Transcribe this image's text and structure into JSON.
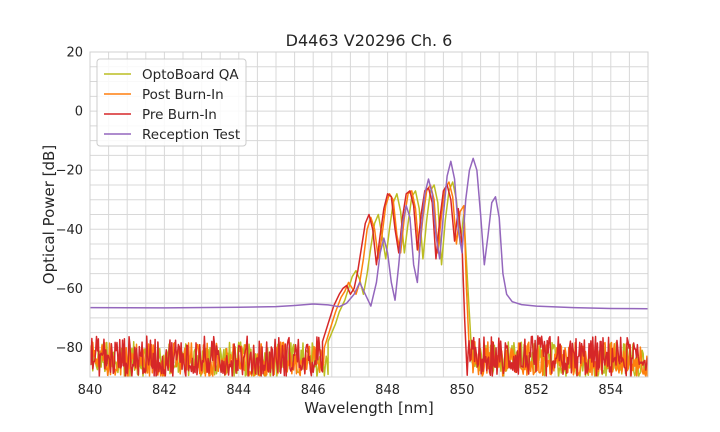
{
  "chart_data": {
    "type": "line",
    "title": "D4463 V20296 Ch. 6",
    "xlabel": "Wavelength [nm]",
    "ylabel": "Optical Power [dB]",
    "xlim": [
      840,
      855
    ],
    "ylim": [
      -90,
      20
    ],
    "xticks": [
      840,
      842,
      844,
      846,
      848,
      850,
      852,
      854
    ],
    "yticks": [
      20,
      0,
      -20,
      -40,
      -60,
      -80
    ],
    "ytick_labels": [
      "20",
      "0",
      "−20",
      "−40",
      "−60",
      "−80"
    ],
    "grid": true,
    "legend_position": "top-left",
    "series": [
      {
        "name": "OptoBoard QA",
        "color": "#bcbd22",
        "noise_floor": {
          "x_ranges": [
            [
              840,
              846.7
            ],
            [
              850.2,
              855
            ]
          ],
          "min": -90,
          "max": -78
        },
        "points": [
          [
            846.4,
            -78
          ],
          [
            846.6,
            -72
          ],
          [
            846.7,
            -68
          ],
          [
            846.85,
            -64
          ],
          [
            846.95,
            -60
          ],
          [
            847.05,
            -56
          ],
          [
            847.15,
            -54
          ],
          [
            847.25,
            -57
          ],
          [
            847.35,
            -62
          ],
          [
            847.45,
            -55
          ],
          [
            847.55,
            -46
          ],
          [
            847.65,
            -38
          ],
          [
            847.75,
            -35
          ],
          [
            847.85,
            -42
          ],
          [
            847.95,
            -50
          ],
          [
            848.05,
            -40
          ],
          [
            848.15,
            -31
          ],
          [
            848.25,
            -28
          ],
          [
            848.35,
            -34
          ],
          [
            848.45,
            -48
          ],
          [
            848.55,
            -38
          ],
          [
            848.65,
            -29
          ],
          [
            848.75,
            -27
          ],
          [
            848.85,
            -33
          ],
          [
            848.95,
            -50
          ],
          [
            849.05,
            -37
          ],
          [
            849.15,
            -27
          ],
          [
            849.25,
            -25
          ],
          [
            849.35,
            -31
          ],
          [
            849.45,
            -52
          ],
          [
            849.55,
            -37
          ],
          [
            849.65,
            -27
          ],
          [
            849.75,
            -24
          ],
          [
            849.85,
            -30
          ],
          [
            849.95,
            -45
          ],
          [
            850.05,
            -35
          ],
          [
            850.15,
            -58
          ],
          [
            850.25,
            -80
          ]
        ]
      },
      {
        "name": "Post Burn-In",
        "color": "#ff7f0e",
        "noise_floor": {
          "x_ranges": [
            [
              840,
              846.6
            ],
            [
              850.1,
              855
            ]
          ],
          "min": -90,
          "max": -78
        },
        "points": [
          [
            846.3,
            -80
          ],
          [
            846.45,
            -74
          ],
          [
            846.6,
            -68
          ],
          [
            846.75,
            -63
          ],
          [
            846.85,
            -61
          ],
          [
            846.95,
            -58
          ],
          [
            847.05,
            -60
          ],
          [
            847.15,
            -62
          ],
          [
            847.25,
            -58
          ],
          [
            847.35,
            -50
          ],
          [
            847.45,
            -40
          ],
          [
            847.55,
            -36
          ],
          [
            847.65,
            -40
          ],
          [
            847.75,
            -50
          ],
          [
            847.85,
            -42
          ],
          [
            847.95,
            -32
          ],
          [
            848.05,
            -28
          ],
          [
            848.15,
            -30
          ],
          [
            848.25,
            -42
          ],
          [
            848.35,
            -48
          ],
          [
            848.45,
            -36
          ],
          [
            848.55,
            -28
          ],
          [
            848.65,
            -27
          ],
          [
            848.75,
            -33
          ],
          [
            848.85,
            -48
          ],
          [
            848.95,
            -36
          ],
          [
            849.05,
            -27
          ],
          [
            849.15,
            -25
          ],
          [
            849.25,
            -30
          ],
          [
            849.35,
            -48
          ],
          [
            849.45,
            -35
          ],
          [
            849.55,
            -26
          ],
          [
            849.65,
            -24
          ],
          [
            849.75,
            -29
          ],
          [
            849.85,
            -45
          ],
          [
            849.95,
            -34
          ],
          [
            850.05,
            -32
          ],
          [
            850.12,
            -60
          ],
          [
            850.2,
            -82
          ]
        ]
      },
      {
        "name": "Pre Burn-In",
        "color": "#d62728",
        "noise_floor": {
          "x_ranges": [
            [
              840,
              846.5
            ],
            [
              850.0,
              855
            ]
          ],
          "min": -90,
          "max": -76
        },
        "points": [
          [
            846.25,
            -78
          ],
          [
            846.4,
            -72
          ],
          [
            846.55,
            -66
          ],
          [
            846.7,
            -62
          ],
          [
            846.8,
            -60
          ],
          [
            846.9,
            -59
          ],
          [
            847.0,
            -62
          ],
          [
            847.1,
            -60
          ],
          [
            847.2,
            -54
          ],
          [
            847.3,
            -46
          ],
          [
            847.4,
            -38
          ],
          [
            847.5,
            -35
          ],
          [
            847.6,
            -40
          ],
          [
            847.7,
            -52
          ],
          [
            847.8,
            -42
          ],
          [
            847.9,
            -33
          ],
          [
            848.0,
            -28
          ],
          [
            848.1,
            -29
          ],
          [
            848.2,
            -40
          ],
          [
            848.3,
            -48
          ],
          [
            848.4,
            -36
          ],
          [
            848.5,
            -28
          ],
          [
            848.6,
            -27
          ],
          [
            848.7,
            -32
          ],
          [
            848.8,
            -47
          ],
          [
            848.9,
            -35
          ],
          [
            849.0,
            -27
          ],
          [
            849.1,
            -26
          ],
          [
            849.2,
            -31
          ],
          [
            849.3,
            -50
          ],
          [
            849.4,
            -37
          ],
          [
            849.5,
            -27
          ],
          [
            849.6,
            -25
          ],
          [
            849.7,
            -30
          ],
          [
            849.8,
            -44
          ],
          [
            849.9,
            -33
          ],
          [
            850.0,
            -45
          ],
          [
            850.07,
            -70
          ],
          [
            850.12,
            -84
          ]
        ]
      },
      {
        "name": "Reception Test",
        "color": "#9467bd",
        "points": [
          [
            840,
            -66.5
          ],
          [
            842,
            -66.6
          ],
          [
            844,
            -66.4
          ],
          [
            845,
            -66.2
          ],
          [
            845.5,
            -65.8
          ],
          [
            846,
            -65.3
          ],
          [
            846.4,
            -65.6
          ],
          [
            846.7,
            -66.2
          ],
          [
            846.9,
            -65
          ],
          [
            847.1,
            -62
          ],
          [
            847.25,
            -58
          ],
          [
            847.4,
            -62
          ],
          [
            847.55,
            -66
          ],
          [
            847.7,
            -58
          ],
          [
            847.8,
            -48
          ],
          [
            847.9,
            -43
          ],
          [
            848.0,
            -48
          ],
          [
            848.1,
            -58
          ],
          [
            848.2,
            -64
          ],
          [
            848.3,
            -52
          ],
          [
            848.4,
            -38
          ],
          [
            848.5,
            -32
          ],
          [
            848.6,
            -36
          ],
          [
            848.7,
            -52
          ],
          [
            848.8,
            -58
          ],
          [
            848.9,
            -40
          ],
          [
            849.0,
            -28
          ],
          [
            849.1,
            -23
          ],
          [
            849.2,
            -28
          ],
          [
            849.3,
            -42
          ],
          [
            849.4,
            -50
          ],
          [
            849.5,
            -35
          ],
          [
            849.6,
            -22
          ],
          [
            849.7,
            -17
          ],
          [
            849.8,
            -23
          ],
          [
            849.9,
            -40
          ],
          [
            850.0,
            -48
          ],
          [
            850.1,
            -30
          ],
          [
            850.2,
            -20
          ],
          [
            850.3,
            -16
          ],
          [
            850.4,
            -20
          ],
          [
            850.5,
            -35
          ],
          [
            850.6,
            -52
          ],
          [
            850.7,
            -42
          ],
          [
            850.8,
            -31
          ],
          [
            850.9,
            -29
          ],
          [
            851.0,
            -36
          ],
          [
            851.1,
            -55
          ],
          [
            851.2,
            -62
          ],
          [
            851.35,
            -64.5
          ],
          [
            851.6,
            -65.5
          ],
          [
            852,
            -66
          ],
          [
            853,
            -66.5
          ],
          [
            854,
            -66.8
          ],
          [
            855,
            -66.9
          ]
        ]
      }
    ]
  }
}
